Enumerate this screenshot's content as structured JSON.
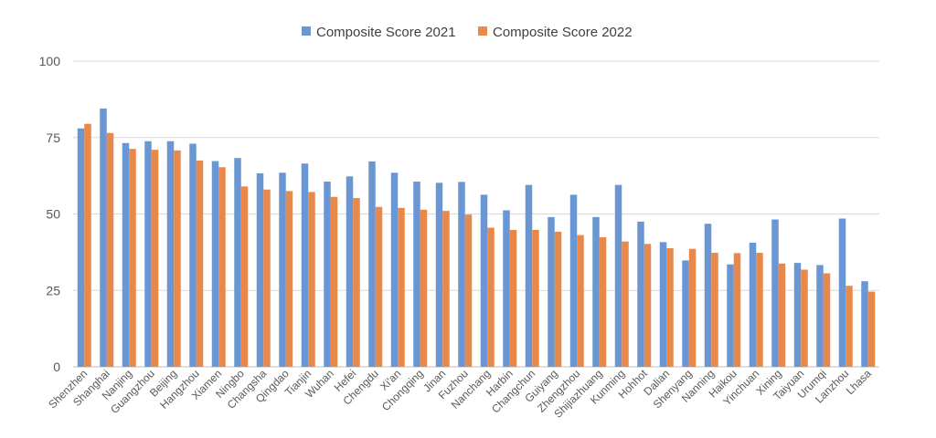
{
  "chart_data": {
    "type": "bar",
    "categories": [
      "Shenzhen",
      "Shanghai",
      "Nanjing",
      "Guangzhou",
      "Beijing",
      "Hangzhou",
      "Xiamen",
      "Ningbo",
      "Changsha",
      "Qingdao",
      "Tianjin",
      "Wuhan",
      "Hefei",
      "Chengdu",
      "Xi'an",
      "Chongqing",
      "Jinan",
      "Fuzhou",
      "Nanchang",
      "Harbin",
      "Changchun",
      "Guiyang",
      "Zhengzhou",
      "Shijiazhuang",
      "Kunming",
      "Hohhot",
      "Dalian",
      "Shenyang",
      "Nanning",
      "Haikou",
      "Yinchuan",
      "Xining",
      "Taiyuan",
      "Urumqi",
      "Lanzhou",
      "Lhasa"
    ],
    "series": [
      {
        "name": "Composite Score 2021",
        "color": "#6a97d4",
        "values": [
          78.0,
          84.5,
          73.2,
          73.8,
          73.8,
          73.0,
          67.3,
          68.3,
          63.3,
          63.5,
          66.5,
          60.6,
          62.3,
          67.2,
          63.5,
          60.6,
          60.2,
          60.5,
          56.3,
          51.2,
          59.5,
          49.0,
          56.3,
          49.0,
          59.5,
          47.5,
          40.8,
          34.8,
          46.8,
          33.5,
          40.6,
          48.2,
          34.0,
          33.3,
          48.5,
          28.0
        ]
      },
      {
        "name": "Composite Score 2022",
        "color": "#e8894b",
        "values": [
          79.5,
          76.5,
          71.3,
          71.0,
          70.8,
          67.5,
          65.3,
          59.0,
          58.0,
          57.5,
          57.2,
          55.6,
          55.2,
          52.3,
          52.0,
          51.4,
          51.0,
          49.8,
          45.5,
          44.8,
          44.8,
          44.2,
          43.1,
          42.4,
          41.0,
          40.2,
          38.8,
          38.6,
          37.3,
          37.2,
          37.3,
          33.8,
          31.8,
          30.6,
          26.5,
          24.6
        ]
      }
    ],
    "yticks": [
      "0",
      "25",
      "50",
      "75",
      "100"
    ],
    "ylim": [
      0,
      100
    ],
    "grid": true,
    "legend_position": "top-center"
  }
}
